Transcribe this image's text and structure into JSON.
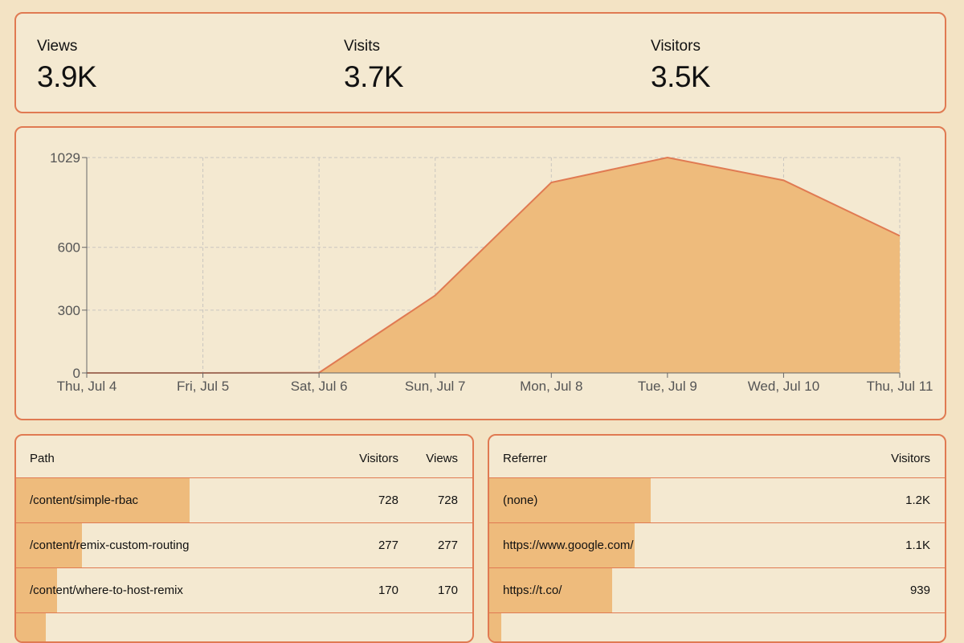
{
  "stats": [
    {
      "label": "Views",
      "value": "3.9K"
    },
    {
      "label": "Visits",
      "value": "3.7K"
    },
    {
      "label": "Visitors",
      "value": "3.5K"
    }
  ],
  "chart_data": {
    "type": "area",
    "categories": [
      "Thu, Jul 4",
      "Fri, Jul 5",
      "Sat, Jul 6",
      "Sun, Jul 7",
      "Mon, Jul 8",
      "Tue, Jul 9",
      "Wed, Jul 10",
      "Thu, Jul 11"
    ],
    "series": [
      {
        "name": "Visitors",
        "values": [
          0,
          0,
          1,
          370,
          910,
          1029,
          920,
          655
        ]
      }
    ],
    "yticks": [
      0,
      300,
      600,
      1029
    ],
    "ylim": [
      0,
      1029
    ],
    "grid": true,
    "fill_color": "#eebb7c",
    "line_color": "#e07a52"
  },
  "paths": {
    "headers": {
      "name": "Path",
      "visitors": "Visitors",
      "views": "Views"
    },
    "rows": [
      {
        "path": "/content/simple-rbac",
        "visitors": "728",
        "views": "728",
        "share": 0.38
      },
      {
        "path": "/content/remix-custom-routing",
        "visitors": "277",
        "views": "277",
        "share": 0.145
      },
      {
        "path": "/content/where-to-host-remix",
        "visitors": "170",
        "views": "170",
        "share": 0.09
      },
      {
        "path": "",
        "visitors": "",
        "views": "",
        "share": 0.066
      }
    ]
  },
  "referrers": {
    "headers": {
      "name": "Referrer",
      "visitors": "Visitors"
    },
    "rows": [
      {
        "referrer": "(none)",
        "visitors": "1.2K",
        "share": 0.355
      },
      {
        "referrer": "https://www.google.com/",
        "visitors": "1.1K",
        "share": 0.32
      },
      {
        "referrer": "https://t.co/",
        "visitors": "939",
        "share": 0.27
      },
      {
        "referrer": "",
        "visitors": "",
        "share": 0.027
      }
    ]
  },
  "colors": {
    "accent": "#e07a52",
    "bar": "#eebb7c",
    "background": "#f3e3c4",
    "card": "#f4e9d1"
  }
}
